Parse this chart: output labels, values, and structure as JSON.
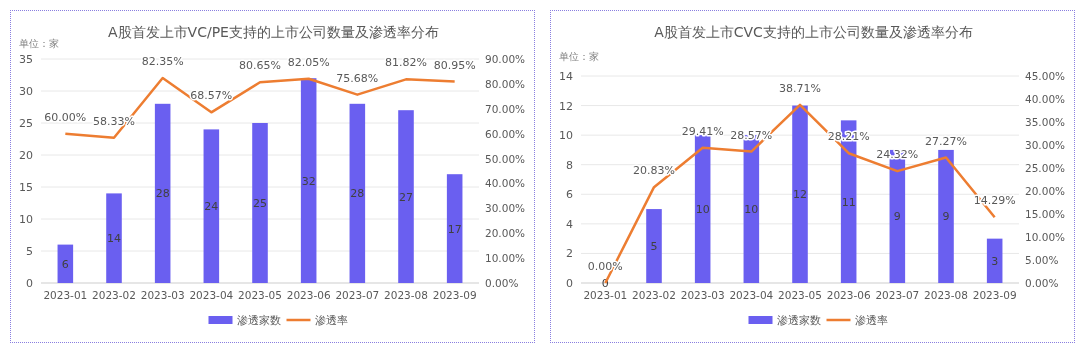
{
  "chart_data": [
    {
      "type": "bar",
      "title": "A股首发上市VC/PE支持的上市公司数量及渗透率分布",
      "ylabel": "单位：家",
      "categories": [
        "2023-01",
        "2023-02",
        "2023-03",
        "2023-04",
        "2023-05",
        "2023-06",
        "2023-07",
        "2023-08",
        "2023-09"
      ],
      "series": [
        {
          "name": "渗透家数",
          "color": "#6a5ff0",
          "values": [
            6,
            14,
            28,
            24,
            25,
            32,
            28,
            27,
            17
          ],
          "data_labels": true
        },
        {
          "name": "渗透率",
          "type": "line",
          "axis": "y2",
          "color": "#ed7d31",
          "values": [
            60,
            58.33,
            82.35,
            68.57,
            80.65,
            82.05,
            75.68,
            81.82,
            80.95
          ],
          "value_labels": [
            "60.00%",
            "58.33%",
            "82.35%",
            "68.57%",
            "80.65%",
            "82.05%",
            "75.68%",
            "81.82%",
            "80.95%"
          ]
        }
      ],
      "ylim": [
        0,
        35
      ],
      "yticks": [
        0,
        5,
        10,
        15,
        20,
        25,
        30,
        35
      ],
      "y2lim": [
        0,
        90
      ],
      "y2ticks": [
        {
          "value": 0,
          "label": "0.00%"
        },
        {
          "value": 10,
          "label": "10.00%"
        },
        {
          "value": 20,
          "label": "20.00%"
        },
        {
          "value": 30,
          "label": "30.00%"
        },
        {
          "value": 40,
          "label": "40.00%"
        },
        {
          "value": 50,
          "label": "50.00%"
        },
        {
          "value": 60,
          "label": "60.00%"
        },
        {
          "value": 70,
          "label": "70.00%"
        },
        {
          "value": 80,
          "label": "80.00%"
        },
        {
          "value": 90,
          "label": "90.00%"
        }
      ],
      "grid": "y",
      "legend": "bottom",
      "marker": "none"
    },
    {
      "type": "bar",
      "title": "A股首发上市CVC支持的上市公司数量及渗透率分布",
      "ylabel": "单位：家",
      "categories": [
        "2023-01",
        "2023-02",
        "2023-03",
        "2023-04",
        "2023-05",
        "2023-06",
        "2023-07",
        "2023-08",
        "2023-09"
      ],
      "series": [
        {
          "name": "渗透家数",
          "color": "#6a5ff0",
          "values": [
            0,
            5,
            10,
            10,
            12,
            11,
            9,
            9,
            3
          ],
          "data_labels": true
        },
        {
          "name": "渗透率",
          "type": "line",
          "axis": "y2",
          "color": "#ed7d31",
          "values": [
            0,
            20.83,
            29.41,
            28.57,
            38.71,
            28.21,
            24.32,
            27.27,
            14.29
          ],
          "value_labels": [
            "0.00%",
            "20.83%",
            "29.41%",
            "28.57%",
            "38.71%",
            "28.21%",
            "24.32%",
            "27.27%",
            "14.29%"
          ]
        }
      ],
      "ylim": [
        0,
        14
      ],
      "yticks": [
        0,
        2,
        4,
        6,
        8,
        10,
        12,
        14
      ],
      "y2lim": [
        0,
        45
      ],
      "y2ticks": [
        {
          "value": 0,
          "label": "0.00%"
        },
        {
          "value": 5,
          "label": "5.00%"
        },
        {
          "value": 10,
          "label": "10.00%"
        },
        {
          "value": 15,
          "label": "15.00%"
        },
        {
          "value": 20,
          "label": "20.00%"
        },
        {
          "value": 25,
          "label": "25.00%"
        },
        {
          "value": 30,
          "label": "30.00%"
        },
        {
          "value": 35,
          "label": "35.00%"
        },
        {
          "value": 40,
          "label": "40.00%"
        },
        {
          "value": 45,
          "label": "45.00%"
        }
      ],
      "grid": "y",
      "legend": "bottom",
      "marker": "none"
    }
  ]
}
